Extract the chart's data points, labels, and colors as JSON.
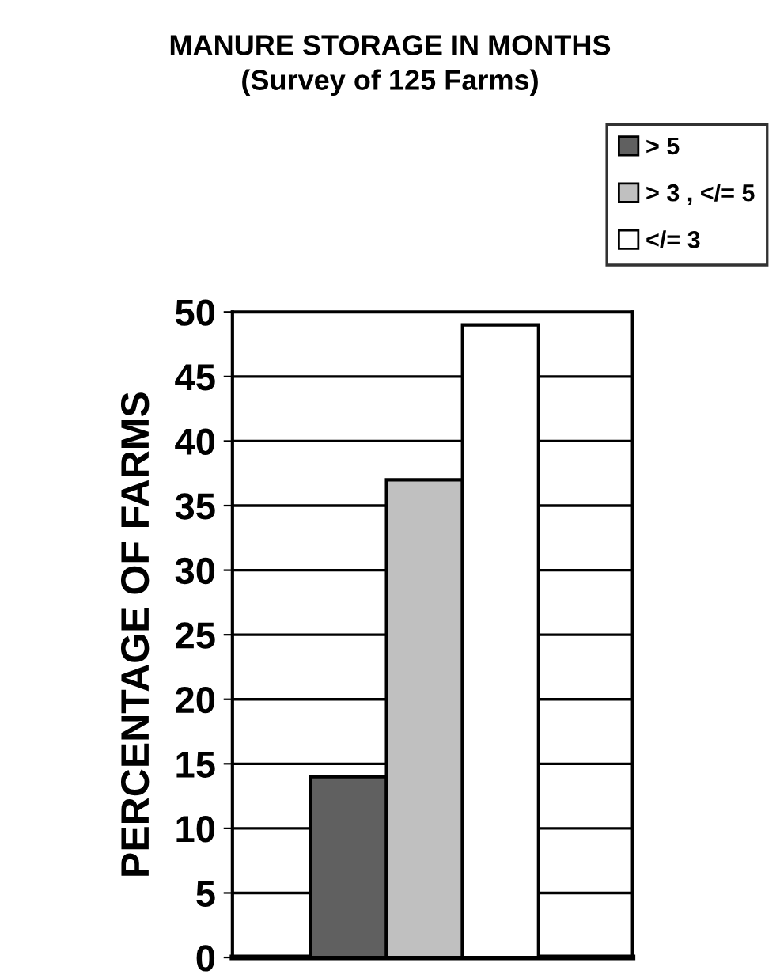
{
  "chart_data": {
    "type": "bar",
    "title": "MANURE STORAGE IN MONTHS\n(Survey of 125 Farms)",
    "ylabel": "PERCENTAGE OF FARMS",
    "categories": [
      null
    ],
    "series": [
      {
        "name": "> 5",
        "color": "#606060",
        "values": [
          14
        ]
      },
      {
        "name": "> 3 , </= 5",
        "color": "#c0c0c0",
        "values": [
          37
        ]
      },
      {
        "name": "</= 3",
        "color": "#ffffff",
        "values": [
          49
        ]
      }
    ],
    "ylim": [
      0,
      50
    ],
    "yticks": [
      0,
      5,
      10,
      15,
      20,
      25,
      30,
      35,
      40,
      45,
      50
    ],
    "grid": "y",
    "legend": "top right",
    "tick_labels": "y"
  }
}
